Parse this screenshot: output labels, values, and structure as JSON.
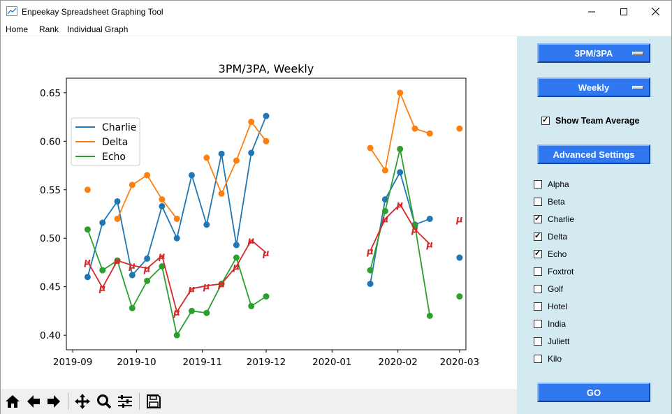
{
  "window": {
    "title": "Enpeekay Spreadsheet Graphing Tool"
  },
  "menu": [
    "Home",
    "Rank",
    "Individual Graph"
  ],
  "sidebar": {
    "stat_dropdown": "3PM/3PA",
    "period_dropdown": "Weekly",
    "show_team_average": {
      "label": "Show Team Average",
      "checked": true
    },
    "advanced_button": "Advanced Settings",
    "players": [
      {
        "name": "Alpha",
        "checked": false
      },
      {
        "name": "Beta",
        "checked": false
      },
      {
        "name": "Charlie",
        "checked": true
      },
      {
        "name": "Delta",
        "checked": true
      },
      {
        "name": "Echo",
        "checked": true
      },
      {
        "name": "Foxtrot",
        "checked": false
      },
      {
        "name": "Golf",
        "checked": false
      },
      {
        "name": "Hotel",
        "checked": false
      },
      {
        "name": "India",
        "checked": false
      },
      {
        "name": "Juliett",
        "checked": false
      },
      {
        "name": "Kilo",
        "checked": false
      }
    ],
    "go_button": "GO"
  },
  "colors": {
    "charlie": "#1f77b4",
    "delta": "#ff7f0e",
    "echo": "#2ca02c",
    "average": "#d62728",
    "button": "#2f78f0",
    "sidebar": "#d3eaf1"
  },
  "average_marker": "μ",
  "chart_data": {
    "type": "line",
    "title": "3PM/3PA, Weekly",
    "xlabel": "",
    "ylabel": "",
    "xlim": [
      "2019-08-29",
      "2020-03-04"
    ],
    "ylim": [
      0.385,
      0.665
    ],
    "grid": false,
    "legend": "top-left",
    "x_ticks": [
      "2019-09",
      "2019-10",
      "2019-11",
      "2019-12",
      "2020-01",
      "2020-02",
      "2020-03"
    ],
    "x_tick_dates": [
      "2019-09-01",
      "2019-10-01",
      "2019-11-01",
      "2019-12-01",
      "2020-01-01",
      "2020-02-01",
      "2020-03-01"
    ],
    "y_ticks": [
      0.4,
      0.45,
      0.5,
      0.55,
      0.6,
      0.65
    ],
    "series": [
      {
        "name": "Charlie",
        "color": "#1f77b4",
        "points": [
          [
            "2019-09-08",
            0.46
          ],
          [
            "2019-09-15",
            0.516
          ],
          [
            "2019-09-22",
            0.538
          ],
          [
            "2019-09-29",
            0.462
          ],
          [
            "2019-10-06",
            0.479
          ],
          [
            "2019-10-13",
            0.533
          ],
          [
            "2019-10-20",
            0.5
          ],
          [
            "2019-10-27",
            0.565
          ],
          [
            "2019-11-03",
            0.514
          ],
          [
            "2019-11-10",
            0.587
          ],
          [
            "2019-11-17",
            0.493
          ],
          [
            "2019-11-24",
            0.588
          ],
          [
            "2019-12-01",
            0.626
          ],
          null,
          [
            "2020-01-19",
            0.453
          ],
          [
            "2020-01-26",
            0.54
          ],
          [
            "2020-02-02",
            0.568
          ],
          [
            "2020-02-09",
            0.514
          ],
          [
            "2020-02-16",
            0.52
          ],
          null,
          [
            "2020-03-01",
            0.48
          ]
        ]
      },
      {
        "name": "Delta",
        "color": "#ff7f0e",
        "points": [
          [
            "2019-09-08",
            0.55
          ],
          null,
          [
            "2019-09-22",
            0.52
          ],
          [
            "2019-09-29",
            0.555
          ],
          [
            "2019-10-06",
            0.565
          ],
          [
            "2019-10-13",
            0.54
          ],
          [
            "2019-10-20",
            0.52
          ],
          null,
          [
            "2019-11-03",
            0.583
          ],
          [
            "2019-11-10",
            0.546
          ],
          [
            "2019-11-17",
            0.58
          ],
          [
            "2019-11-24",
            0.62
          ],
          [
            "2019-12-01",
            0.6
          ],
          null,
          [
            "2020-01-19",
            0.593
          ],
          [
            "2020-01-26",
            0.57
          ],
          [
            "2020-02-02",
            0.65
          ],
          [
            "2020-02-09",
            0.613
          ],
          [
            "2020-02-16",
            0.608
          ],
          null,
          [
            "2020-03-01",
            0.613
          ]
        ]
      },
      {
        "name": "Echo",
        "color": "#2ca02c",
        "points": [
          [
            "2019-09-08",
            0.509
          ],
          [
            "2019-09-15",
            0.467
          ],
          [
            "2019-09-22",
            0.477
          ],
          [
            "2019-09-29",
            0.428
          ],
          [
            "2019-10-06",
            0.456
          ],
          [
            "2019-10-13",
            0.471
          ],
          [
            "2019-10-20",
            0.4
          ],
          [
            "2019-10-27",
            0.425
          ],
          [
            "2019-11-03",
            0.423
          ],
          [
            "2019-11-10",
            0.453
          ],
          [
            "2019-11-17",
            0.48
          ],
          [
            "2019-11-24",
            0.43
          ],
          [
            "2019-12-01",
            0.44
          ],
          null,
          [
            "2020-01-19",
            0.467
          ],
          [
            "2020-01-26",
            0.528
          ],
          [
            "2020-02-02",
            0.592
          ],
          [
            "2020-02-09",
            0.513
          ],
          [
            "2020-02-16",
            0.42
          ],
          null,
          [
            "2020-03-01",
            0.44
          ]
        ]
      },
      {
        "name": "Team Average",
        "color": "#d62728",
        "marker": "μ",
        "in_legend": false,
        "points": [
          [
            "2019-09-08",
            0.476
          ],
          [
            "2019-09-15",
            0.449
          ],
          [
            "2019-09-22",
            0.477
          ],
          [
            "2019-09-29",
            0.472
          ],
          [
            "2019-10-06",
            0.469
          ],
          [
            "2019-10-13",
            0.482
          ],
          [
            "2019-10-20",
            0.424
          ],
          [
            "2019-10-27",
            0.448
          ],
          [
            "2019-11-03",
            0.451
          ],
          [
            "2019-11-10",
            0.453
          ],
          [
            "2019-11-17",
            0.471
          ],
          [
            "2019-11-24",
            0.498
          ],
          [
            "2019-12-01",
            0.485
          ],
          null,
          [
            "2020-01-19",
            0.487
          ],
          [
            "2020-01-26",
            0.52
          ],
          [
            "2020-02-02",
            0.535
          ],
          [
            "2020-02-09",
            0.509
          ],
          [
            "2020-02-16",
            0.494
          ],
          null,
          [
            "2020-03-01",
            0.52
          ]
        ]
      }
    ]
  }
}
